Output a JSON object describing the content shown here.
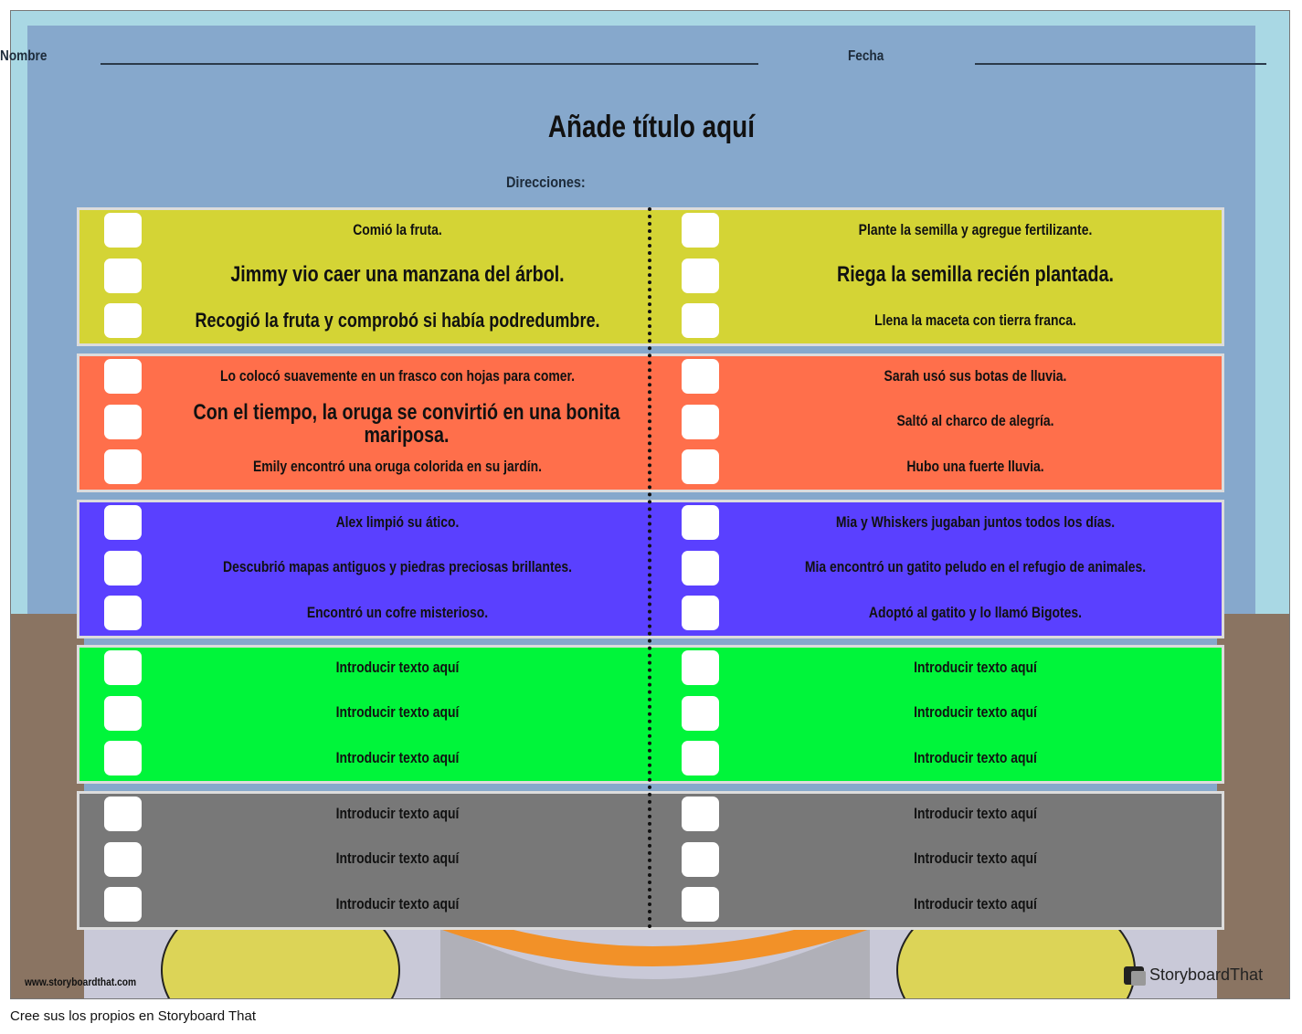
{
  "header": {
    "name_label": "Nombre",
    "date_label": "Fecha",
    "title": "Añade título aquí",
    "directions": "Direcciones:"
  },
  "colors": {
    "yellow": "#d4d435",
    "orange": "#ff6f4b",
    "purple": "#5a40ff",
    "green": "#00f53a",
    "gray": "#787878"
  },
  "rows": [
    {
      "color": "#d4d435",
      "left": [
        "Comió la fruta.",
        "Jimmy vio caer una manzana del árbol.",
        "Recogió la fruta y comprobó si había podredumbre."
      ],
      "right": [
        "Plante la semilla y agregue fertilizante.",
        "Riega la semilla recién plantada.",
        "Llena la maceta con tierra franca."
      ]
    },
    {
      "color": "#ff6f4b",
      "left": [
        "Lo colocó suavemente en un frasco con hojas para comer.",
        "Con el tiempo, la oruga se convirtió en una bonita mariposa.",
        "Emily encontró una oruga colorida en su jardín."
      ],
      "right": [
        "Sarah usó sus botas de lluvia.",
        "Saltó al charco de alegría.",
        "Hubo una fuerte lluvia."
      ]
    },
    {
      "color": "#5a40ff",
      "left": [
        "Alex limpió su ático.",
        "Descubrió mapas antiguos y piedras preciosas brillantes.",
        "Encontró un cofre misterioso."
      ],
      "right": [
        "Mia y Whiskers jugaban juntos todos los días.",
        "Mia encontró un gatito peludo en el refugio de animales.",
        "Adoptó al gatito y lo llamó Bigotes."
      ]
    },
    {
      "color": "#00f53a",
      "left": [
        "Introducir texto aquí",
        "Introducir texto aquí",
        "Introducir texto aquí"
      ],
      "right": [
        "Introducir texto aquí",
        "Introducir texto aquí",
        "Introducir texto aquí"
      ]
    },
    {
      "color": "#787878",
      "left": [
        "Introducir texto aquí",
        "Introducir texto aquí",
        "Introducir texto aquí"
      ],
      "right": [
        "Introducir texto aquí",
        "Introducir texto aquí",
        "Introducir texto aquí"
      ]
    }
  ],
  "watermark": {
    "url": "www.storyboardthat.com",
    "brand": "StoryboardThat"
  },
  "footer": "Cree sus los propios en Storyboard That"
}
